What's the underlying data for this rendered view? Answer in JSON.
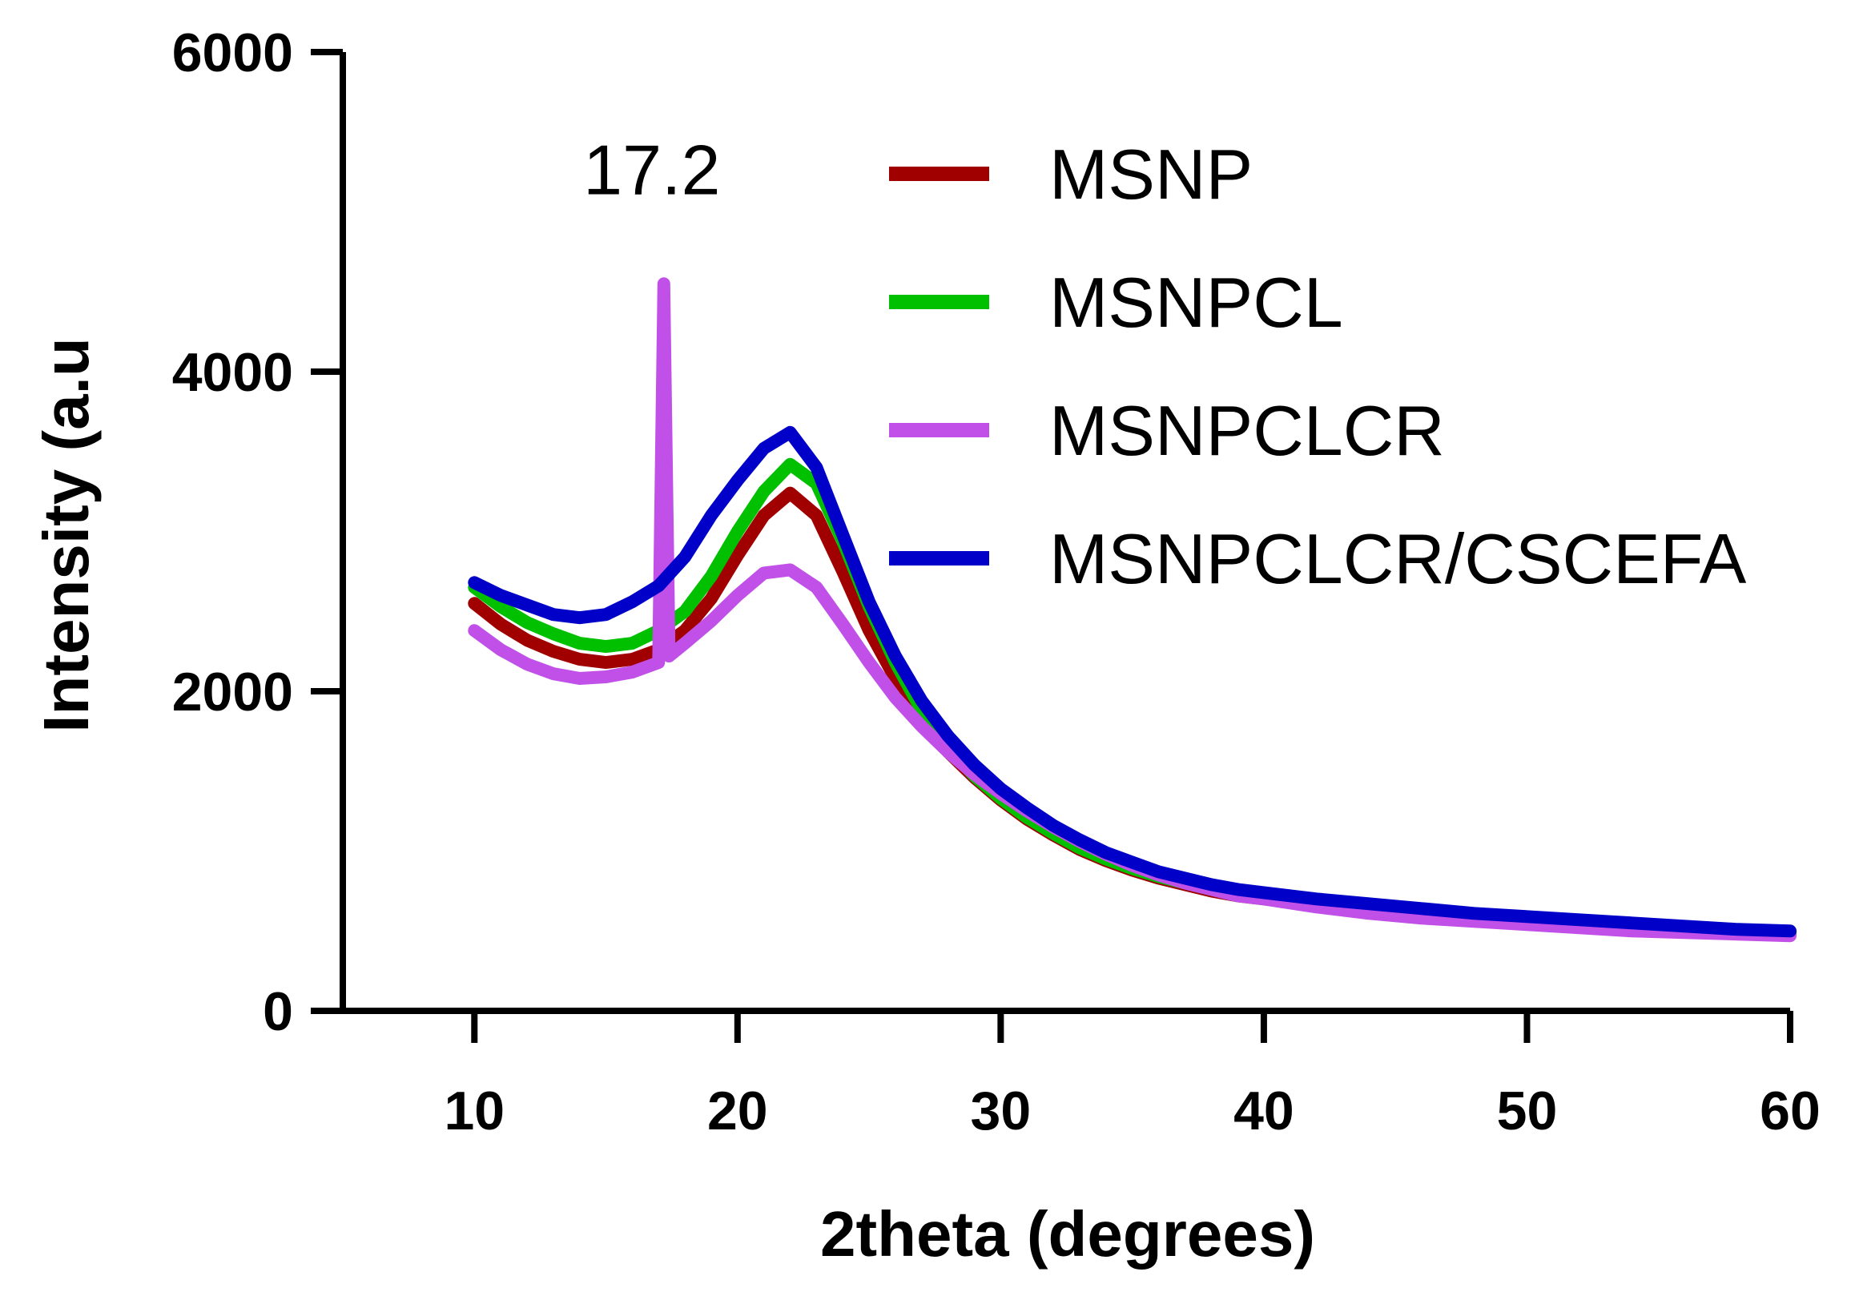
{
  "chart_data": {
    "type": "line",
    "title": "",
    "xlabel": "2theta (degrees)",
    "ylabel": "Intensity (a.u",
    "xlim": [
      5,
      60
    ],
    "ylim": [
      0,
      6000
    ],
    "xticks": [
      10,
      20,
      30,
      40,
      50,
      60
    ],
    "yticks": [
      0,
      2000,
      4000,
      6000
    ],
    "grid": false,
    "legend_position": "top-right",
    "annotations": [
      {
        "text": "17.2",
        "x": 17.2,
        "series": "MSNPCLCR",
        "peak_y": 4550
      }
    ],
    "series": [
      {
        "name": "MSNP",
        "color": "#a00000",
        "points": [
          [
            10,
            2550
          ],
          [
            11,
            2420
          ],
          [
            12,
            2320
          ],
          [
            13,
            2250
          ],
          [
            14,
            2200
          ],
          [
            15,
            2180
          ],
          [
            16,
            2200
          ],
          [
            17,
            2260
          ],
          [
            18,
            2380
          ],
          [
            19,
            2580
          ],
          [
            20,
            2850
          ],
          [
            21,
            3100
          ],
          [
            22,
            3240
          ],
          [
            23,
            3100
          ],
          [
            24,
            2750
          ],
          [
            25,
            2380
          ],
          [
            26,
            2080
          ],
          [
            27,
            1820
          ],
          [
            28,
            1620
          ],
          [
            29,
            1460
          ],
          [
            30,
            1320
          ],
          [
            31,
            1200
          ],
          [
            32,
            1100
          ],
          [
            33,
            1010
          ],
          [
            34,
            940
          ],
          [
            35,
            880
          ],
          [
            36,
            830
          ],
          [
            37,
            790
          ],
          [
            38,
            750
          ],
          [
            39,
            720
          ],
          [
            40,
            700
          ],
          [
            42,
            660
          ],
          [
            44,
            630
          ],
          [
            46,
            600
          ],
          [
            48,
            580
          ],
          [
            50,
            560
          ],
          [
            52,
            540
          ],
          [
            54,
            520
          ],
          [
            56,
            500
          ],
          [
            58,
            490
          ],
          [
            60,
            480
          ]
        ]
      },
      {
        "name": "MSNPCL",
        "color": "#00c000",
        "points": [
          [
            10,
            2650
          ],
          [
            11,
            2530
          ],
          [
            12,
            2430
          ],
          [
            13,
            2360
          ],
          [
            14,
            2300
          ],
          [
            15,
            2280
          ],
          [
            16,
            2300
          ],
          [
            17,
            2380
          ],
          [
            18,
            2500
          ],
          [
            19,
            2720
          ],
          [
            20,
            3000
          ],
          [
            21,
            3250
          ],
          [
            22,
            3420
          ],
          [
            23,
            3300
          ],
          [
            24,
            2940
          ],
          [
            25,
            2530
          ],
          [
            26,
            2180
          ],
          [
            27,
            1880
          ],
          [
            28,
            1650
          ],
          [
            29,
            1470
          ],
          [
            30,
            1330
          ],
          [
            31,
            1210
          ],
          [
            32,
            1110
          ],
          [
            33,
            1020
          ],
          [
            34,
            950
          ],
          [
            35,
            890
          ],
          [
            36,
            840
          ],
          [
            37,
            800
          ],
          [
            38,
            760
          ],
          [
            39,
            730
          ],
          [
            40,
            710
          ],
          [
            42,
            670
          ],
          [
            44,
            640
          ],
          [
            46,
            610
          ],
          [
            48,
            590
          ],
          [
            50,
            570
          ],
          [
            52,
            550
          ],
          [
            54,
            530
          ],
          [
            56,
            510
          ],
          [
            58,
            500
          ],
          [
            60,
            490
          ]
        ]
      },
      {
        "name": "MSNPCLCR",
        "color": "#c050e8",
        "points": [
          [
            10,
            2380
          ],
          [
            11,
            2260
          ],
          [
            12,
            2170
          ],
          [
            13,
            2110
          ],
          [
            14,
            2080
          ],
          [
            15,
            2090
          ],
          [
            16,
            2120
          ],
          [
            17,
            2180
          ],
          [
            17.2,
            4550
          ],
          [
            17.4,
            2220
          ],
          [
            18,
            2300
          ],
          [
            19,
            2440
          ],
          [
            20,
            2600
          ],
          [
            21,
            2740
          ],
          [
            22,
            2760
          ],
          [
            23,
            2650
          ],
          [
            24,
            2420
          ],
          [
            25,
            2180
          ],
          [
            26,
            1960
          ],
          [
            27,
            1780
          ],
          [
            28,
            1620
          ],
          [
            29,
            1480
          ],
          [
            30,
            1360
          ],
          [
            31,
            1250
          ],
          [
            32,
            1150
          ],
          [
            33,
            1060
          ],
          [
            34,
            980
          ],
          [
            35,
            910
          ],
          [
            36,
            850
          ],
          [
            37,
            800
          ],
          [
            38,
            760
          ],
          [
            39,
            720
          ],
          [
            40,
            700
          ],
          [
            42,
            650
          ],
          [
            44,
            610
          ],
          [
            46,
            580
          ],
          [
            48,
            560
          ],
          [
            50,
            540
          ],
          [
            52,
            520
          ],
          [
            54,
            500
          ],
          [
            56,
            490
          ],
          [
            58,
            480
          ],
          [
            60,
            470
          ]
        ]
      },
      {
        "name": "MSNPCLCR/CSCEFA",
        "color": "#0000c8",
        "points": [
          [
            10,
            2680
          ],
          [
            11,
            2600
          ],
          [
            12,
            2540
          ],
          [
            13,
            2480
          ],
          [
            14,
            2460
          ],
          [
            15,
            2480
          ],
          [
            16,
            2560
          ],
          [
            17,
            2660
          ],
          [
            18,
            2840
          ],
          [
            19,
            3100
          ],
          [
            20,
            3320
          ],
          [
            21,
            3520
          ],
          [
            22,
            3620
          ],
          [
            23,
            3400
          ],
          [
            24,
            2980
          ],
          [
            25,
            2560
          ],
          [
            26,
            2220
          ],
          [
            27,
            1940
          ],
          [
            28,
            1720
          ],
          [
            29,
            1540
          ],
          [
            30,
            1390
          ],
          [
            31,
            1270
          ],
          [
            32,
            1160
          ],
          [
            33,
            1070
          ],
          [
            34,
            990
          ],
          [
            35,
            930
          ],
          [
            36,
            870
          ],
          [
            37,
            830
          ],
          [
            38,
            790
          ],
          [
            39,
            760
          ],
          [
            40,
            740
          ],
          [
            42,
            700
          ],
          [
            44,
            670
          ],
          [
            46,
            640
          ],
          [
            48,
            610
          ],
          [
            50,
            590
          ],
          [
            52,
            570
          ],
          [
            54,
            550
          ],
          [
            56,
            530
          ],
          [
            58,
            510
          ],
          [
            60,
            500
          ]
        ]
      }
    ]
  }
}
